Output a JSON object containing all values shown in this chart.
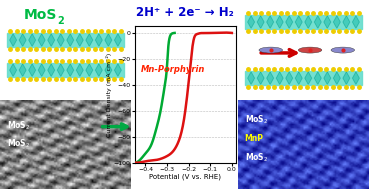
{
  "title": "2H⁺ + 2e⁻ → H₂",
  "title_color": "#0000cc",
  "xlabel": "Potential (V vs. RHE)",
  "ylabel": "Current Density (mA cm⁻²)",
  "xlim": [
    -0.45,
    0.02
  ],
  "ylim": [
    -100,
    5
  ],
  "xticks": [
    -0.4,
    -0.3,
    -0.2,
    -0.1,
    0.0
  ],
  "yticks": [
    0,
    -20,
    -40,
    -60,
    -80,
    -100
  ],
  "grid_color": "#bbbbbb",
  "bg_color": "#ffffff",
  "green_curve_x": [
    -0.45,
    -0.42,
    -0.4,
    -0.37,
    -0.35,
    -0.33,
    -0.31,
    -0.3,
    -0.295,
    -0.29,
    -0.285,
    -0.28,
    -0.275,
    -0.27,
    -0.265
  ],
  "green_curve_y": [
    -100,
    -97,
    -93,
    -85,
    -74,
    -60,
    -40,
    -25,
    -12,
    -5,
    -2,
    -0.8,
    -0.3,
    -0.1,
    0
  ],
  "red_curve_x": [
    -0.45,
    -0.43,
    -0.4,
    -0.35,
    -0.3,
    -0.25,
    -0.22,
    -0.2,
    -0.19,
    -0.185,
    -0.18,
    -0.175,
    -0.17,
    -0.16,
    -0.15,
    -0.13,
    -0.1,
    0.0
  ],
  "red_curve_y": [
    -100,
    -100,
    -99,
    -98,
    -95,
    -85,
    -65,
    -38,
    -22,
    -14,
    -8,
    -4,
    -2,
    -0.8,
    -0.3,
    -0.1,
    -0.03,
    0
  ],
  "mos2_text": "MoS",
  "mos2_sub": "2",
  "panel_tl_bg": "#f0fff0",
  "panel_tr_bg": "#f0f0ff",
  "panel_bl_bg": "#404040",
  "panel_br_bg": "#1a2060"
}
